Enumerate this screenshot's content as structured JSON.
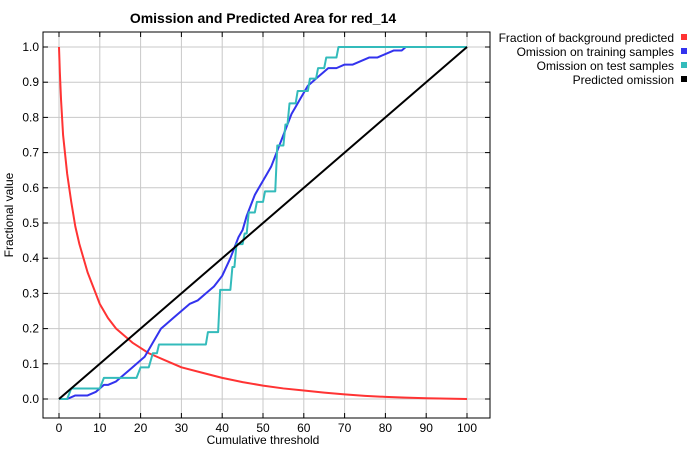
{
  "chart_data": {
    "type": "line",
    "title": "Omission and Predicted Area for red_14",
    "xlabel": "Cumulative threshold",
    "ylabel": "Fractional value",
    "xlim": [
      0,
      100
    ],
    "ylim": [
      0,
      1
    ],
    "xticks": [
      0,
      10,
      20,
      30,
      40,
      50,
      60,
      70,
      80,
      90,
      100
    ],
    "yticks": [
      0.0,
      0.1,
      0.2,
      0.3,
      0.4,
      0.5,
      0.6,
      0.7,
      0.8,
      0.9,
      1.0
    ],
    "ytick_labels": [
      "0.0",
      "0.1",
      "0.2",
      "0.3",
      "0.4",
      "0.5",
      "0.6",
      "0.7",
      "0.8",
      "0.9",
      "1.0"
    ],
    "grid": true,
    "legend_position": "outside-top-right",
    "series": [
      {
        "name": "Fraction of background predicted",
        "color": "#ff3333",
        "x": [
          0,
          0.2,
          0.5,
          1,
          2,
          3,
          4,
          5,
          6,
          7,
          8,
          9,
          10,
          12,
          14,
          16,
          18,
          20,
          22,
          24,
          26,
          28,
          30,
          35,
          40,
          45,
          50,
          55,
          60,
          65,
          70,
          75,
          80,
          85,
          90,
          95,
          100
        ],
        "y": [
          1.0,
          0.93,
          0.85,
          0.75,
          0.64,
          0.56,
          0.49,
          0.44,
          0.4,
          0.36,
          0.33,
          0.3,
          0.27,
          0.23,
          0.2,
          0.18,
          0.16,
          0.145,
          0.13,
          0.12,
          0.11,
          0.1,
          0.09,
          0.075,
          0.06,
          0.048,
          0.038,
          0.03,
          0.024,
          0.018,
          0.013,
          0.009,
          0.006,
          0.004,
          0.002,
          0.001,
          0.0
        ]
      },
      {
        "name": "Omission on training samples",
        "color": "#3333ee",
        "x": [
          0,
          2,
          4,
          7,
          9,
          10,
          11,
          12,
          14,
          16,
          18,
          20,
          21,
          22,
          23,
          24,
          25,
          26,
          28,
          30,
          32,
          34,
          36,
          38,
          40,
          42,
          43,
          44,
          45,
          46,
          47,
          48,
          49,
          50,
          51,
          52,
          53,
          54,
          55,
          56,
          57,
          58,
          59,
          60,
          61,
          62,
          63,
          64,
          65,
          66,
          68,
          70,
          72,
          74,
          76,
          78,
          80,
          82,
          84,
          85,
          86,
          90,
          95,
          100
        ],
        "y": [
          0.0,
          0.0,
          0.01,
          0.01,
          0.02,
          0.03,
          0.04,
          0.04,
          0.05,
          0.07,
          0.09,
          0.11,
          0.12,
          0.14,
          0.16,
          0.18,
          0.2,
          0.21,
          0.23,
          0.25,
          0.27,
          0.28,
          0.3,
          0.32,
          0.35,
          0.4,
          0.43,
          0.46,
          0.48,
          0.52,
          0.55,
          0.58,
          0.6,
          0.62,
          0.64,
          0.66,
          0.69,
          0.72,
          0.75,
          0.78,
          0.81,
          0.83,
          0.85,
          0.87,
          0.89,
          0.9,
          0.91,
          0.92,
          0.93,
          0.94,
          0.94,
          0.95,
          0.95,
          0.96,
          0.97,
          0.97,
          0.98,
          0.99,
          0.99,
          1.0,
          1.0,
          1.0,
          1.0,
          1.0
        ]
      },
      {
        "name": "Omission on test samples",
        "color": "#33bbbb",
        "x": [
          0,
          2,
          3,
          10,
          11,
          19,
          20,
          22,
          23,
          24,
          24.5,
          36,
          36.5,
          39,
          39.5,
          42,
          42.5,
          43,
          43.5,
          45,
          45.5,
          46,
          46.5,
          48,
          48.5,
          50,
          50.5,
          53,
          53.5,
          55,
          55.5,
          56,
          56.5,
          58,
          58.5,
          61,
          61.5,
          63,
          63.5,
          65,
          65.5,
          68,
          68.5,
          100
        ],
        "y": [
          0.0,
          0.0,
          0.03,
          0.03,
          0.06,
          0.06,
          0.09,
          0.09,
          0.13,
          0.13,
          0.155,
          0.155,
          0.19,
          0.19,
          0.31,
          0.31,
          0.375,
          0.375,
          0.44,
          0.44,
          0.47,
          0.47,
          0.53,
          0.53,
          0.56,
          0.56,
          0.59,
          0.59,
          0.72,
          0.72,
          0.78,
          0.78,
          0.84,
          0.84,
          0.875,
          0.875,
          0.91,
          0.91,
          0.94,
          0.94,
          0.97,
          0.97,
          1.0,
          1.0
        ]
      },
      {
        "name": "Predicted omission",
        "color": "#000000",
        "x": [
          0,
          100
        ],
        "y": [
          0,
          1
        ]
      }
    ]
  }
}
